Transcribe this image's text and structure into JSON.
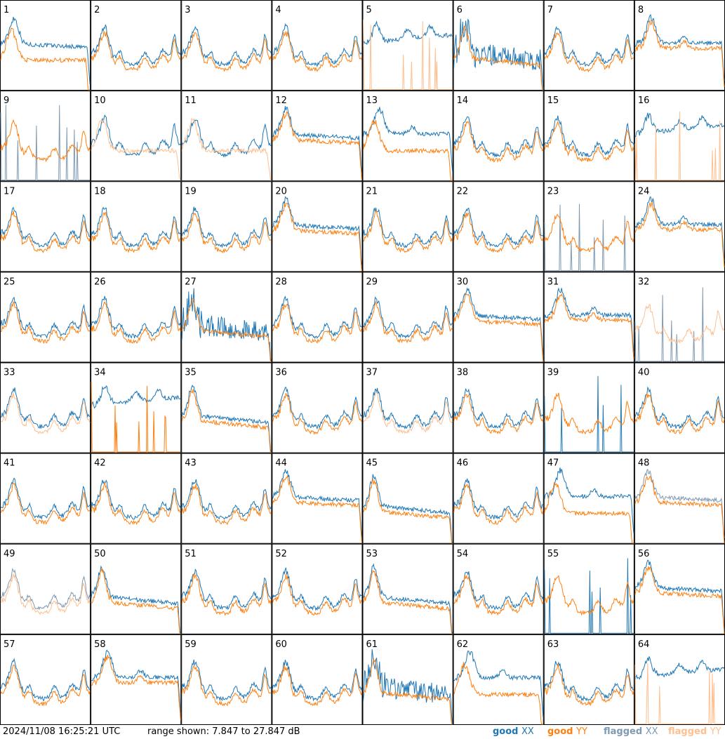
{
  "footer": {
    "timestamp": "2024/11/08 16:25:21 UTC",
    "range_text": "range shown: 7.847 to 27.847 dB"
  },
  "legend": [
    {
      "status": "good",
      "pol": "XX",
      "color": "#1f77b4"
    },
    {
      "status": "good",
      "pol": "YY",
      "color": "#ff7f0e"
    },
    {
      "status": "flagged",
      "pol": "XX",
      "color": "#7f99b2"
    },
    {
      "status": "flagged",
      "pol": "YY",
      "color": "#ffbf8f"
    }
  ],
  "chart_data": {
    "type": "line",
    "ylabel": "dB",
    "ylim": [
      7.847,
      27.847
    ],
    "grid_rows": 8,
    "grid_cols": 8,
    "panels": [
      {
        "id": "1",
        "shape": "A",
        "xx": "good",
        "yy": "good",
        "yy_style": "lowdrop"
      },
      {
        "id": "2",
        "shape": "B",
        "xx": "good",
        "yy": "good"
      },
      {
        "id": "3",
        "shape": "B",
        "xx": "good",
        "yy": "good"
      },
      {
        "id": "4",
        "shape": "B",
        "xx": "good",
        "yy": "good"
      },
      {
        "id": "5",
        "shape": "C",
        "xx": "good",
        "yy": "flagged",
        "yy_style": "spike"
      },
      {
        "id": "6",
        "shape": "D",
        "xx": "good",
        "yy": "good",
        "xx_style": "noisy"
      },
      {
        "id": "7",
        "shape": "B",
        "xx": "good",
        "yy": "good"
      },
      {
        "id": "8",
        "shape": "E",
        "xx": "good",
        "yy": "good"
      },
      {
        "id": "9",
        "shape": "B",
        "xx": "flagged",
        "yy": "good",
        "xx_style": "spike"
      },
      {
        "id": "10",
        "shape": "B",
        "xx": "good",
        "yy": "flagged",
        "yy_style": "lowdrop"
      },
      {
        "id": "11",
        "shape": "B",
        "xx": "good",
        "yy": "flagged",
        "yy_style": "lowdrop"
      },
      {
        "id": "12",
        "shape": "A",
        "xx": "good",
        "yy": "good"
      },
      {
        "id": "13",
        "shape": "E",
        "xx": "good",
        "yy": "good",
        "yy_style": "lowdrop"
      },
      {
        "id": "14",
        "shape": "B",
        "xx": "good",
        "yy": "good"
      },
      {
        "id": "15",
        "shape": "B",
        "xx": "good",
        "yy": "good"
      },
      {
        "id": "16",
        "shape": "C",
        "xx": "good",
        "yy": "flagged",
        "yy_style": "spike"
      },
      {
        "id": "17",
        "shape": "B",
        "xx": "good",
        "yy": "good"
      },
      {
        "id": "18",
        "shape": "B",
        "xx": "good",
        "yy": "good"
      },
      {
        "id": "19",
        "shape": "B",
        "xx": "good",
        "yy": "good"
      },
      {
        "id": "20",
        "shape": "A",
        "xx": "good",
        "yy": "good"
      },
      {
        "id": "21",
        "shape": "B",
        "xx": "good",
        "yy": "good"
      },
      {
        "id": "22",
        "shape": "B",
        "xx": "good",
        "yy": "good"
      },
      {
        "id": "23",
        "shape": "B",
        "xx": "flagged",
        "yy": "good",
        "xx_style": "spike"
      },
      {
        "id": "24",
        "shape": "E",
        "xx": "good",
        "yy": "good"
      },
      {
        "id": "25",
        "shape": "B",
        "xx": "good",
        "yy": "good"
      },
      {
        "id": "26",
        "shape": "B",
        "xx": "good",
        "yy": "good"
      },
      {
        "id": "27",
        "shape": "D",
        "xx": "good",
        "yy": "good",
        "xx_style": "noisy"
      },
      {
        "id": "28",
        "shape": "B",
        "xx": "good",
        "yy": "good"
      },
      {
        "id": "29",
        "shape": "B",
        "xx": "good",
        "yy": "good"
      },
      {
        "id": "30",
        "shape": "A",
        "xx": "good",
        "yy": "good"
      },
      {
        "id": "31",
        "shape": "E",
        "xx": "good",
        "yy": "good"
      },
      {
        "id": "32",
        "shape": "B",
        "xx": "flagged",
        "yy": "flagged",
        "xx_style": "spike"
      },
      {
        "id": "33",
        "shape": "B",
        "xx": "good",
        "yy": "flagged"
      },
      {
        "id": "34",
        "shape": "C",
        "xx": "good",
        "yy": "good",
        "yy_style": "spike"
      },
      {
        "id": "35",
        "shape": "D",
        "xx": "good",
        "yy": "good"
      },
      {
        "id": "36",
        "shape": "B",
        "xx": "good",
        "yy": "good"
      },
      {
        "id": "37",
        "shape": "B",
        "xx": "good",
        "yy": "flagged"
      },
      {
        "id": "38",
        "shape": "B",
        "xx": "good",
        "yy": "good"
      },
      {
        "id": "39",
        "shape": "B",
        "xx": "good",
        "yy": "good",
        "xx_style": "spike"
      },
      {
        "id": "40",
        "shape": "B",
        "xx": "good",
        "yy": "good"
      },
      {
        "id": "41",
        "shape": "B",
        "xx": "good",
        "yy": "good"
      },
      {
        "id": "42",
        "shape": "B",
        "xx": "good",
        "yy": "good"
      },
      {
        "id": "43",
        "shape": "B",
        "xx": "good",
        "yy": "good"
      },
      {
        "id": "44",
        "shape": "A",
        "xx": "good",
        "yy": "good"
      },
      {
        "id": "45",
        "shape": "D",
        "xx": "good",
        "yy": "good"
      },
      {
        "id": "46",
        "shape": "B",
        "xx": "good",
        "yy": "good"
      },
      {
        "id": "47",
        "shape": "E",
        "xx": "good",
        "yy": "good",
        "yy_style": "lowdrop"
      },
      {
        "id": "48",
        "shape": "A",
        "xx": "flagged",
        "yy": "good"
      },
      {
        "id": "49",
        "shape": "B",
        "xx": "flagged",
        "yy": "flagged"
      },
      {
        "id": "50",
        "shape": "D",
        "xx": "good",
        "yy": "good"
      },
      {
        "id": "51",
        "shape": "B",
        "xx": "good",
        "yy": "good"
      },
      {
        "id": "52",
        "shape": "B",
        "xx": "good",
        "yy": "good"
      },
      {
        "id": "53",
        "shape": "D",
        "xx": "good",
        "yy": "good"
      },
      {
        "id": "54",
        "shape": "B",
        "xx": "good",
        "yy": "good"
      },
      {
        "id": "55",
        "shape": "B",
        "xx": "good",
        "yy": "good",
        "xx_style": "spike"
      },
      {
        "id": "56",
        "shape": "A",
        "xx": "good",
        "yy": "good"
      },
      {
        "id": "57",
        "shape": "B",
        "xx": "good",
        "yy": "good"
      },
      {
        "id": "58",
        "shape": "E",
        "xx": "good",
        "yy": "good"
      },
      {
        "id": "59",
        "shape": "B",
        "xx": "good",
        "yy": "good"
      },
      {
        "id": "60",
        "shape": "B",
        "xx": "good",
        "yy": "good"
      },
      {
        "id": "61",
        "shape": "D",
        "xx": "good",
        "yy": "good",
        "xx_style": "noisy"
      },
      {
        "id": "62",
        "shape": "E",
        "xx": "good",
        "yy": "good",
        "yy_style": "lowdrop"
      },
      {
        "id": "63",
        "shape": "B",
        "xx": "good",
        "yy": "good"
      },
      {
        "id": "64",
        "shape": "C",
        "xx": "good",
        "yy": "flagged",
        "yy_style": "spike"
      }
    ]
  }
}
